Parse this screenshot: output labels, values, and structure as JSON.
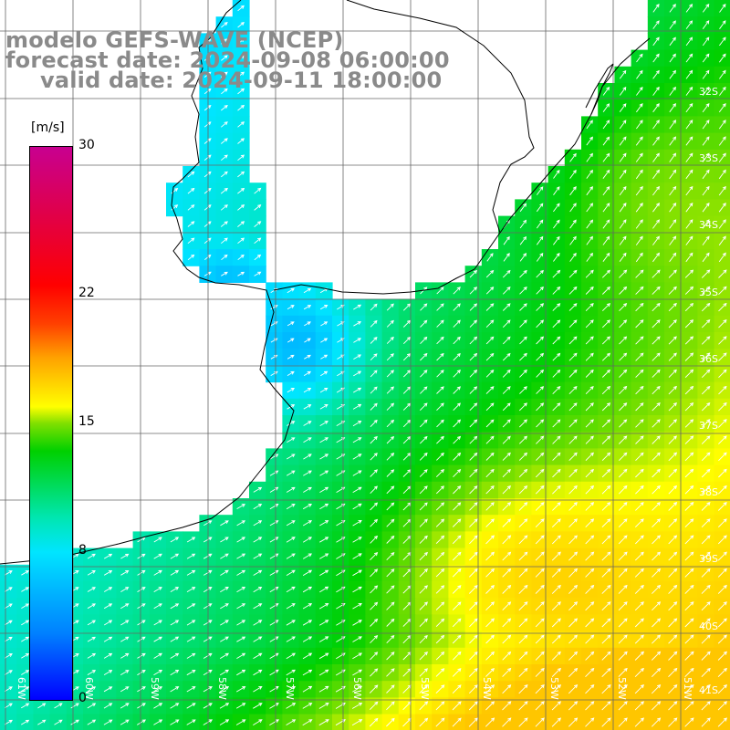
{
  "title": {
    "line1": "modelo GEFS-WAVE (NCEP)",
    "line2": "forecast date: 2024-09-08 06:00:00",
    "line3": "valid date: 2024-09-11 18:00:00"
  },
  "colorbar": {
    "unit": "[m/s]",
    "ticks": [
      {
        "label": "30",
        "value": 30
      },
      {
        "label": "22",
        "value": 22
      },
      {
        "label": "15",
        "value": 15
      },
      {
        "label": "8",
        "value": 8
      },
      {
        "label": "0",
        "value": 0
      }
    ],
    "range": [
      0,
      30
    ],
    "colors": [
      "#0000ff",
      "#0080ff",
      "#00e5ff",
      "#00d000",
      "#ffff00",
      "#ff4000",
      "#ff0000",
      "#c80090"
    ]
  },
  "lat_labels": [
    "32S",
    "33S",
    "34S",
    "35S",
    "36S",
    "37S",
    "38S",
    "39S",
    "40S",
    "41S"
  ],
  "lon_labels": [
    "61W",
    "60W",
    "59W",
    "58W",
    "57W",
    "56W",
    "55W",
    "54W",
    "53W",
    "52W",
    "51W"
  ],
  "colors": {
    "land": "#ffffff",
    "grid": "#666666",
    "coast": "#000000",
    "arrow": "#ffffff",
    "title": "#8a8a8a"
  }
}
